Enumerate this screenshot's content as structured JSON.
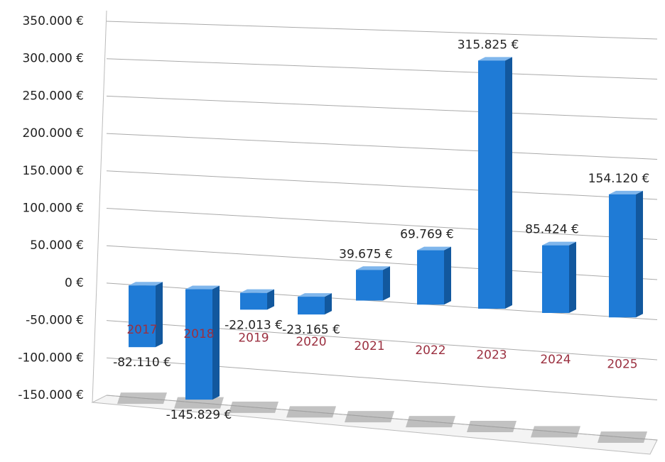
{
  "chart_data": {
    "type": "bar",
    "categories": [
      "2017",
      "2018",
      "2019",
      "2020",
      "2021",
      "2022",
      "2023",
      "2024",
      "2025"
    ],
    "values": [
      -82110,
      -145829,
      -22013,
      -23165,
      39675,
      69769,
      315825,
      85424,
      154120
    ],
    "value_labels": [
      "-82.110 €",
      "-145.829 €",
      "-22.013 €",
      "-23.165 €",
      "39.675 €",
      "69.769 €",
      "315.825 €",
      "85.424 €",
      "154.120 €"
    ],
    "color": "#1f7bd6",
    "ylim": [
      -150000,
      350000
    ],
    "yticks": [
      {
        "value": -150000,
        "label": "-150.000 €"
      },
      {
        "value": -100000,
        "label": "-100.000 €"
      },
      {
        "value": -50000,
        "label": "-50.000 €"
      },
      {
        "value": 0,
        "label": "0 €"
      },
      {
        "value": 50000,
        "label": "50.000 €"
      },
      {
        "value": 100000,
        "label": "100.000 €"
      },
      {
        "value": 150000,
        "label": "150.000 €"
      },
      {
        "value": 200000,
        "label": "200.000 €"
      },
      {
        "value": 250000,
        "label": "250.000 €"
      },
      {
        "value": 300000,
        "label": "300.000 €"
      },
      {
        "value": 350000,
        "label": "350.000 €"
      }
    ],
    "grid": true
  }
}
